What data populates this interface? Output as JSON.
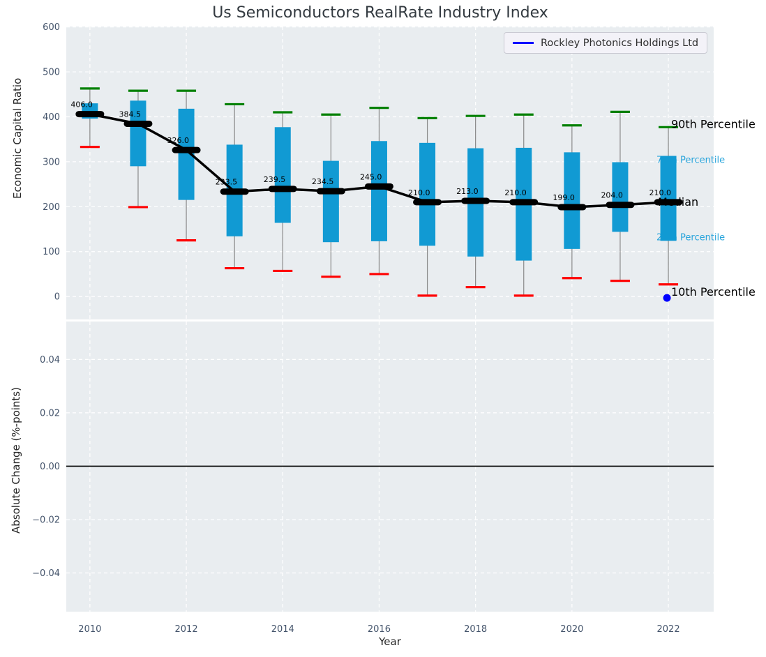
{
  "figure": {
    "title": "Us Semiconductors RealRate Industry Index",
    "xlabel": "Year",
    "top_ylabel": "Economic Capital Ratio",
    "bottom_ylabel": "Absolute Change (%-points)",
    "legend": {
      "label": "Rockley Photonics Holdings Ltd"
    }
  },
  "annotations": {
    "p90": "90th Percentile",
    "p75": "75th Percentile",
    "median": "Median",
    "p25": "25th Percentile",
    "p10": "10th Percentile"
  },
  "colors": {
    "box": "#119ad3",
    "p90_cap": "#008000",
    "p10_cap": "#ff0000",
    "whisker": "#888888",
    "median": "#000000",
    "company": "#0000ff",
    "annotation_blue": "#2aa5dc",
    "annotation_black": "#000000",
    "axes_bg": "#e9edf0",
    "grid": "#ffffff",
    "tick": "#44546b",
    "zero_line": "#000000"
  },
  "chart_data": [
    {
      "type": "boxplot",
      "title": "Us Semiconductors RealRate Industry Index",
      "xlabel": "Year",
      "ylabel": "Economic Capital Ratio",
      "ylim": [
        -51,
        601
      ],
      "xlim": [
        2009.51,
        2022.94
      ],
      "grid": true,
      "legend_position": "upper right",
      "yticks": [
        0,
        100,
        200,
        300,
        400,
        500,
        600
      ],
      "ytick_labels": [
        "0",
        "100",
        "200",
        "300",
        "400",
        "500",
        "600"
      ],
      "xticks": [
        2010,
        2012,
        2014,
        2016,
        2018,
        2020,
        2022
      ],
      "xtick_labels": [
        "2010",
        "2012",
        "2014",
        "2016",
        "2018",
        "2020",
        "2022"
      ],
      "categories": [
        2010,
        2011,
        2012,
        2013,
        2014,
        2015,
        2016,
        2017,
        2018,
        2019,
        2020,
        2021,
        2022
      ],
      "series": [
        {
          "name": "90th Percentile",
          "values": [
            463,
            458,
            458,
            428,
            410,
            405,
            420,
            397,
            402,
            405,
            381,
            411,
            377
          ]
        },
        {
          "name": "75th Percentile",
          "values": [
            430,
            436,
            418,
            338,
            377,
            302,
            346,
            342,
            330,
            331,
            321,
            299,
            313
          ]
        },
        {
          "name": "Median",
          "values": [
            406.0,
            384.5,
            326.0,
            233.5,
            239.5,
            234.5,
            245.0,
            210.0,
            213.0,
            210.0,
            199.0,
            204.0,
            210.0
          ]
        },
        {
          "name": "25th Percentile",
          "values": [
            396,
            290,
            215,
            134,
            164,
            121,
            123,
            113,
            89,
            80,
            106,
            144,
            124
          ]
        },
        {
          "name": "10th Percentile",
          "values": [
            333,
            199,
            125,
            63,
            57,
            44,
            50,
            2,
            21,
            2,
            41,
            35,
            27
          ]
        }
      ],
      "median_labels": [
        "406.0",
        "384.5",
        "326.0",
        "233.5",
        "239.5",
        "234.5",
        "245.0",
        "210.0",
        "213.0",
        "210.0",
        "199.0",
        "204.0",
        "210.0"
      ],
      "company_series": {
        "name": "Rockley Photonics Holdings Ltd",
        "points": [
          {
            "x": 2022,
            "y": 0
          }
        ]
      }
    },
    {
      "type": "line",
      "xlabel": "Year",
      "ylabel": "Absolute Change (%-points)",
      "ylim": [
        -0.0545,
        0.0542
      ],
      "xlim": [
        2009.51,
        2022.94
      ],
      "grid": true,
      "yticks": [
        0.04,
        0.02,
        0.0,
        -0.02,
        -0.04
      ],
      "ytick_labels": [
        "0.04",
        "0.02",
        "0.00",
        "−0.02",
        "−0.04"
      ],
      "xticks": [
        2010,
        2012,
        2014,
        2016,
        2018,
        2020,
        2022
      ],
      "xtick_labels": [
        "2010",
        "2012",
        "2014",
        "2016",
        "2018",
        "2020",
        "2022"
      ],
      "zero_line": 0.0,
      "series": []
    }
  ]
}
